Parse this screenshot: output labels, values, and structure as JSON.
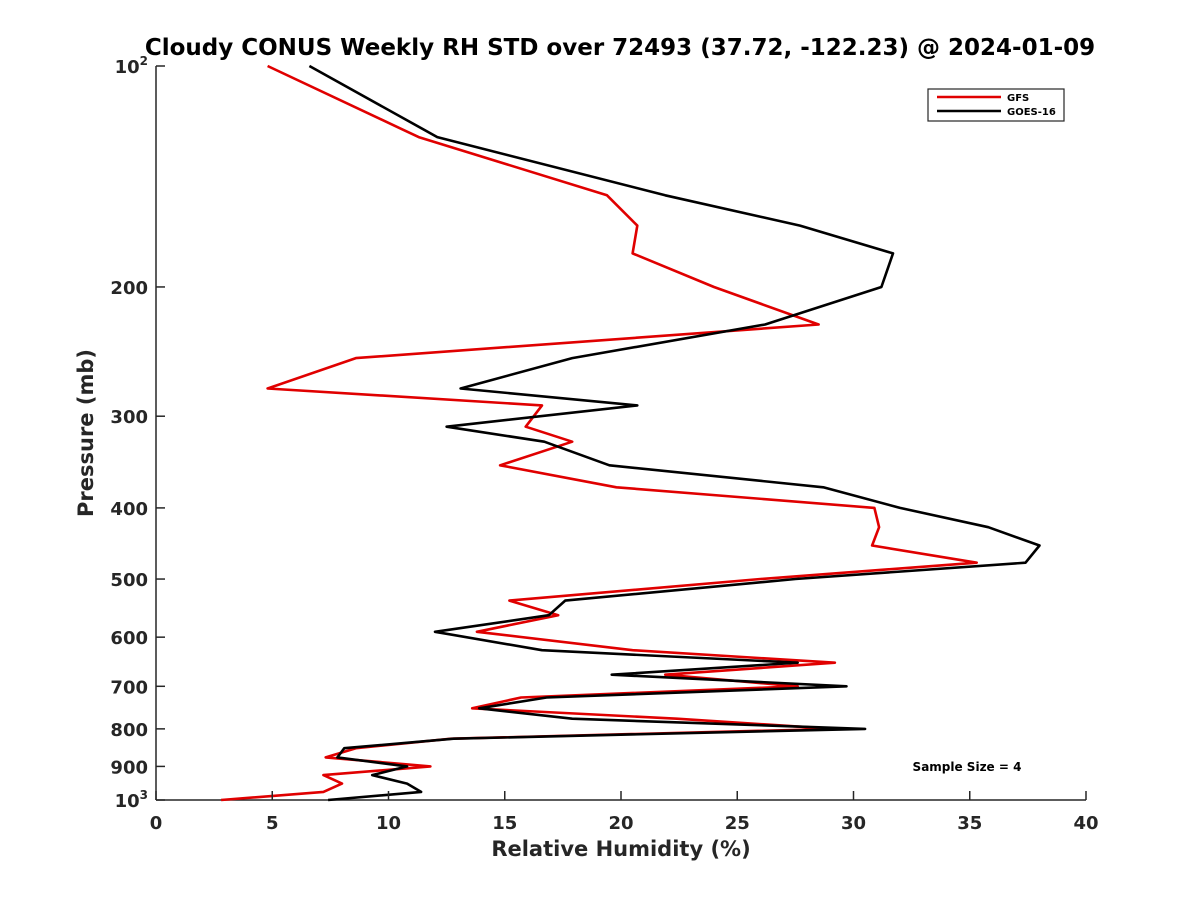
{
  "chart_data": {
    "type": "line",
    "title": "Cloudy CONUS Weekly RH STD over 72493 (37.72, -122.23) @ 2024-01-09",
    "xlabel": "Relative Humidity (%)",
    "ylabel": "Pressure (mb)",
    "xlim": [
      0,
      40
    ],
    "ylim": [
      100,
      1000
    ],
    "yscale": "log",
    "y_reversed": true,
    "x_ticks": [
      "0",
      "5",
      "10",
      "15",
      "20",
      "25",
      "30",
      "35",
      "40"
    ],
    "y_ticks": [
      {
        "value": 100,
        "label": "10",
        "sup": "2"
      },
      {
        "value": 200,
        "label": "200"
      },
      {
        "value": 300,
        "label": "300"
      },
      {
        "value": 400,
        "label": "400"
      },
      {
        "value": 500,
        "label": "500"
      },
      {
        "value": 600,
        "label": "600"
      },
      {
        "value": 700,
        "label": "700"
      },
      {
        "value": 800,
        "label": "800"
      },
      {
        "value": 900,
        "label": "900"
      },
      {
        "value": 1000,
        "label": "10",
        "sup": "3"
      }
    ],
    "grid": false,
    "legend_position": "top-right",
    "annotation": "Sample Size = 4",
    "series": [
      {
        "name": "GFS",
        "color": "#e00000",
        "points": [
          [
            4.8,
            100
          ],
          [
            11.3,
            125
          ],
          [
            19.4,
            150
          ],
          [
            20.7,
            165
          ],
          [
            20.5,
            180
          ],
          [
            24.0,
            200
          ],
          [
            28.5,
            225
          ],
          [
            8.6,
            250
          ],
          [
            4.8,
            275
          ],
          [
            16.6,
            290
          ],
          [
            15.9,
            310
          ],
          [
            17.9,
            325
          ],
          [
            14.8,
            350
          ],
          [
            19.8,
            375
          ],
          [
            30.9,
            400
          ],
          [
            31.1,
            425
          ],
          [
            30.8,
            450
          ],
          [
            35.3,
            475
          ],
          [
            26.0,
            500
          ],
          [
            15.2,
            535
          ],
          [
            17.3,
            560
          ],
          [
            13.8,
            590
          ],
          [
            20.5,
            625
          ],
          [
            29.2,
            650
          ],
          [
            21.9,
            675
          ],
          [
            27.6,
            700
          ],
          [
            15.7,
            725
          ],
          [
            13.6,
            750
          ],
          [
            22.4,
            775
          ],
          [
            29.2,
            800
          ],
          [
            12.7,
            825
          ],
          [
            8.6,
            850
          ],
          [
            7.3,
            875
          ],
          [
            11.8,
            900
          ],
          [
            7.2,
            925
          ],
          [
            8.0,
            950
          ],
          [
            7.2,
            975
          ],
          [
            2.8,
            1000
          ]
        ]
      },
      {
        "name": "GOES-16",
        "color": "#000000",
        "points": [
          [
            6.6,
            100
          ],
          [
            12.1,
            125
          ],
          [
            21.9,
            150
          ],
          [
            27.7,
            165
          ],
          [
            31.7,
            180
          ],
          [
            31.2,
            200
          ],
          [
            26.2,
            225
          ],
          [
            17.9,
            250
          ],
          [
            13.1,
            275
          ],
          [
            20.7,
            290
          ],
          [
            12.5,
            310
          ],
          [
            16.7,
            325
          ],
          [
            19.5,
            350
          ],
          [
            28.7,
            375
          ],
          [
            32.0,
            400
          ],
          [
            35.8,
            425
          ],
          [
            38.0,
            450
          ],
          [
            37.4,
            475
          ],
          [
            27.5,
            500
          ],
          [
            17.6,
            535
          ],
          [
            16.9,
            560
          ],
          [
            12.0,
            590
          ],
          [
            16.6,
            625
          ],
          [
            27.6,
            650
          ],
          [
            19.6,
            675
          ],
          [
            29.7,
            700
          ],
          [
            16.8,
            725
          ],
          [
            13.9,
            750
          ],
          [
            17.9,
            775
          ],
          [
            30.5,
            800
          ],
          [
            12.8,
            825
          ],
          [
            8.1,
            850
          ],
          [
            7.8,
            875
          ],
          [
            10.8,
            900
          ],
          [
            9.3,
            925
          ],
          [
            10.8,
            950
          ],
          [
            11.4,
            975
          ],
          [
            7.4,
            1000
          ]
        ]
      }
    ]
  }
}
